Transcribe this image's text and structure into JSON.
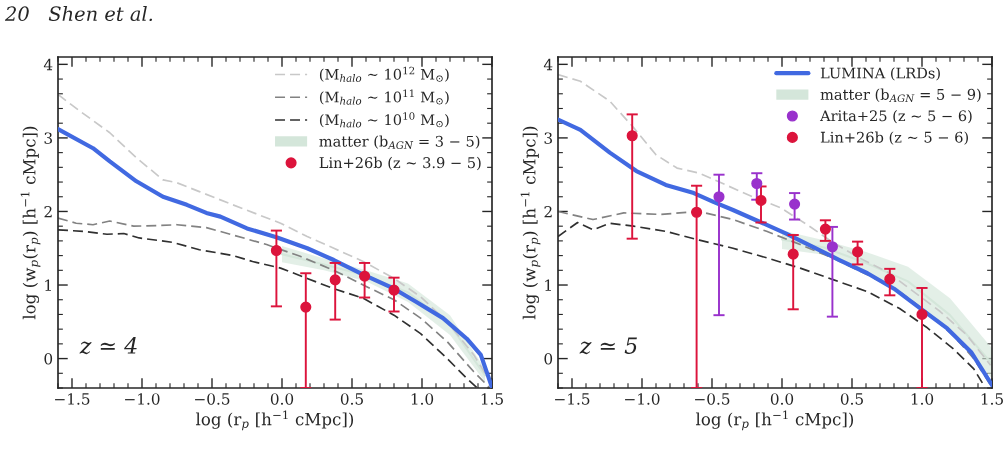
{
  "chart_data": [
    {
      "type": "line",
      "xlabel": "log (r$_{p}$ [h$^{−1}$ cMpc])",
      "ylabel": "log (w$_{p}$(r$_{p}$) [h$^{−1}$ cMpc])",
      "xlim": [
        -1.6,
        1.5
      ],
      "ylim": [
        -0.4,
        4.1
      ],
      "xticks": [
        {
          "value": -1.5,
          "label": "−1.5"
        },
        {
          "value": -1.0,
          "label": "−1.0"
        },
        {
          "value": -0.5,
          "label": "−0.5"
        },
        {
          "value": 0.0,
          "label": "0.0"
        },
        {
          "value": 0.5,
          "label": "0.5"
        },
        {
          "value": 1.0,
          "label": "1.0"
        },
        {
          "value": 1.5,
          "label": "1.5"
        }
      ],
      "yticks": [
        0,
        1,
        2,
        3,
        4
      ],
      "legend": "top right",
      "grid": false,
      "annotations": [
        "z ≃ 4",
        "20   Shen et al."
      ],
      "series": [
        {
          "name": "(M$_{halo}$ ~ 10$^{12}$ M$_{⊙}$)",
          "color": "#c8c8c8",
          "line_style": "dashed",
          "x": [
            -1.6,
            -1.44,
            -1.23,
            -1.04,
            -0.85,
            -0.75,
            -0.59,
            -0.35,
            -0.01,
            0.18,
            0.37,
            0.58,
            0.8,
            0.99,
            1.18,
            1.37,
            1.49
          ],
          "values": [
            3.59,
            3.36,
            3.07,
            2.73,
            2.43,
            2.39,
            2.27,
            2.09,
            1.84,
            1.66,
            1.5,
            1.32,
            1.09,
            0.84,
            0.5,
            0.05,
            -0.32
          ]
        },
        {
          "name": "(M$_{halo}$ ~ 10$^{11}$ M$_{⊙}$)",
          "color": "#828282",
          "line_style": "dashed",
          "x": [
            -1.6,
            -1.47,
            -1.35,
            -1.23,
            -1.06,
            -0.87,
            -0.75,
            -0.54,
            -0.35,
            -0.11,
            0.13,
            0.37,
            0.58,
            0.8,
            0.99,
            1.18,
            1.37,
            1.48
          ],
          "values": [
            1.91,
            1.84,
            1.82,
            1.87,
            1.8,
            1.81,
            1.82,
            1.78,
            1.68,
            1.55,
            1.39,
            1.2,
            1.0,
            0.8,
            0.55,
            0.23,
            -0.18,
            -0.39
          ]
        },
        {
          "name": "(M$_{halo}$ ~ 10$^{10}$ M$_{⊙}$)",
          "color": "#303030",
          "line_style": "dashed",
          "x": [
            -1.6,
            -1.42,
            -1.25,
            -1.13,
            -1.02,
            -0.78,
            -0.59,
            -0.35,
            -0.21,
            -0.01,
            0.18,
            0.37,
            0.58,
            0.8,
            0.99,
            1.18,
            1.32,
            1.39
          ],
          "values": [
            1.75,
            1.73,
            1.69,
            1.7,
            1.64,
            1.58,
            1.48,
            1.4,
            1.32,
            1.23,
            1.09,
            0.95,
            0.82,
            0.59,
            0.34,
            0.0,
            -0.27,
            -0.39
          ]
        },
        {
          "name": "matter (b$_{AGN}$ = 3 − 5)",
          "color": "#d4e6da",
          "line_style": "solid",
          "x": [
            0.0,
            0.3,
            0.6,
            0.9,
            1.2,
            1.45
          ],
          "values": [
            1.42,
            1.28,
            1.13,
            0.9,
            0.46,
            -0.23
          ],
          "lower": [
            1.31,
            1.2,
            1.05,
            0.77,
            0.32,
            -0.32
          ],
          "upper": [
            1.53,
            1.36,
            1.2,
            1.02,
            0.59,
            -0.14
          ]
        },
        {
          "color": "#4169e1",
          "line_style": "solid",
          "x": [
            -1.6,
            -1.35,
            -1.23,
            -1.04,
            -0.85,
            -0.68,
            -0.54,
            -0.44,
            -0.25,
            -0.04,
            0.18,
            0.37,
            0.58,
            0.8,
            0.96,
            1.15,
            1.32,
            1.42,
            1.5
          ],
          "values": [
            3.12,
            2.86,
            2.68,
            2.41,
            2.2,
            2.09,
            1.98,
            1.93,
            1.77,
            1.65,
            1.5,
            1.34,
            1.14,
            0.95,
            0.77,
            0.55,
            0.27,
            0.05,
            -0.39
          ]
        },
        {
          "type": "scatter",
          "marker": "circle",
          "name": "Lin+26b (z ~ 3.9 − 5)",
          "color": "#dc143c",
          "x": [
            -0.04,
            0.17,
            0.38,
            0.59,
            0.8
          ],
          "values": [
            1.47,
            0.7,
            1.07,
            1.12,
            0.93
          ],
          "errors": [
            [
              0.71,
              1.74
            ],
            [
              -0.4,
              1.16
            ],
            [
              0.53,
              1.3
            ],
            [
              0.83,
              1.3
            ],
            [
              0.64,
              1.1
            ]
          ]
        }
      ]
    },
    {
      "type": "line",
      "xlabel": "log (r$_{p}$ [h$^{−1}$ cMpc])",
      "ylabel": "log (w$_{p}$(r$_{p}$) [h$^{−1}$ cMpc])",
      "xlim": [
        -1.6,
        1.5
      ],
      "ylim": [
        -0.4,
        4.1
      ],
      "xticks": [
        {
          "value": -1.5,
          "label": "−1.5"
        },
        {
          "value": -1.0,
          "label": "−1.0"
        },
        {
          "value": -0.5,
          "label": "−0.5"
        },
        {
          "value": 0.0,
          "label": "0.0"
        },
        {
          "value": 0.5,
          "label": "0.5"
        },
        {
          "value": 1.0,
          "label": "1.0"
        },
        {
          "value": 1.5,
          "label": "1.5"
        }
      ],
      "yticks": [
        0,
        1,
        2,
        3,
        4
      ],
      "legend": "top right",
      "grid": false,
      "annotations": [
        "z ≃ 5"
      ],
      "series": [
        {
          "color": "#c8c8c8",
          "line_style": "dashed",
          "x": [
            -1.6,
            -1.44,
            -1.23,
            -1.06,
            -0.9,
            -0.75,
            -0.59,
            -0.4,
            -0.21,
            -0.01,
            0.18,
            0.37,
            0.56,
            0.75,
            0.94,
            1.13,
            1.32,
            1.49
          ],
          "values": [
            3.86,
            3.77,
            3.5,
            3.14,
            2.77,
            2.59,
            2.52,
            2.36,
            2.2,
            2.05,
            1.82,
            1.57,
            1.36,
            1.18,
            0.91,
            0.64,
            0.32,
            -0.09
          ]
        },
        {
          "color": "#828282",
          "line_style": "dashed",
          "x": [
            -1.6,
            -1.35,
            -1.13,
            -0.87,
            -0.59,
            -0.35,
            -0.11,
            0.13,
            0.37,
            0.61,
            0.84,
            1.03,
            1.22,
            1.37,
            1.49
          ],
          "values": [
            2.0,
            1.89,
            1.98,
            1.96,
            2.0,
            1.89,
            1.73,
            1.55,
            1.36,
            1.14,
            0.91,
            0.64,
            0.32,
            0.0,
            -0.36
          ]
        },
        {
          "color": "#303030",
          "line_style": "dashed",
          "x": [
            -1.6,
            -1.46,
            -1.35,
            -1.23,
            -1.06,
            -0.83,
            -0.59,
            -0.35,
            -0.11,
            0.13,
            0.37,
            0.61,
            0.84,
            1.03,
            1.22,
            1.37,
            1.45
          ],
          "values": [
            1.66,
            1.85,
            1.75,
            1.84,
            1.8,
            1.73,
            1.61,
            1.5,
            1.37,
            1.23,
            1.07,
            0.91,
            0.68,
            0.43,
            0.14,
            -0.14,
            -0.39
          ]
        },
        {
          "name": "LUMINA (LRDs)",
          "color": "#4169e1",
          "line_style": "solid",
          "x": [
            -1.6,
            -1.44,
            -1.23,
            -1.04,
            -0.83,
            -0.63,
            -0.49,
            -0.35,
            -0.16,
            0.03,
            0.22,
            0.41,
            0.61,
            0.8,
            0.99,
            1.18,
            1.35,
            1.5
          ],
          "values": [
            3.25,
            3.11,
            2.8,
            2.55,
            2.36,
            2.25,
            2.13,
            2.02,
            1.86,
            1.7,
            1.52,
            1.34,
            1.16,
            0.95,
            0.68,
            0.41,
            0.09,
            -0.36
          ]
        },
        {
          "name": "matter (b$_{AGN}$ = 5 − 9)",
          "color": "#d4e6da",
          "line_style": "solid",
          "x": [
            0.0,
            0.3,
            0.6,
            0.9,
            1.2,
            1.5
          ],
          "values": [
            1.62,
            1.51,
            1.3,
            1.05,
            0.59,
            -0.07
          ],
          "lower": [
            1.49,
            1.41,
            1.14,
            0.84,
            0.36,
            -0.27
          ],
          "upper": [
            1.74,
            1.61,
            1.45,
            1.25,
            0.82,
            0.14
          ]
        },
        {
          "type": "scatter",
          "marker": "circle",
          "name": "Arita+25 (z ~ 5 − 6)",
          "color": "#9932cc",
          "x": [
            -0.45,
            -0.18,
            0.09,
            0.36
          ],
          "values": [
            2.2,
            2.38,
            2.1,
            1.52
          ],
          "errors": [
            [
              0.59,
              2.5
            ],
            [
              2.16,
              2.52
            ],
            [
              1.89,
              2.25
            ],
            [
              0.57,
              1.79
            ]
          ]
        },
        {
          "type": "scatter",
          "marker": "circle",
          "name": "Lin+26b (z ~ 5 − 6)",
          "color": "#dc143c",
          "x": [
            -1.07,
            -0.61,
            -0.15,
            0.08,
            0.31,
            0.54,
            0.77,
            1.0
          ],
          "values": [
            3.03,
            1.99,
            2.15,
            1.42,
            1.76,
            1.45,
            1.08,
            0.6
          ],
          "errors": [
            [
              1.63,
              3.32
            ],
            [
              -0.4,
              2.35
            ],
            [
              1.85,
              2.34
            ],
            [
              0.67,
              1.68
            ],
            [
              1.6,
              1.88
            ],
            [
              1.28,
              1.59
            ],
            [
              0.86,
              1.22
            ],
            [
              -0.4,
              0.96
            ]
          ]
        }
      ]
    }
  ]
}
